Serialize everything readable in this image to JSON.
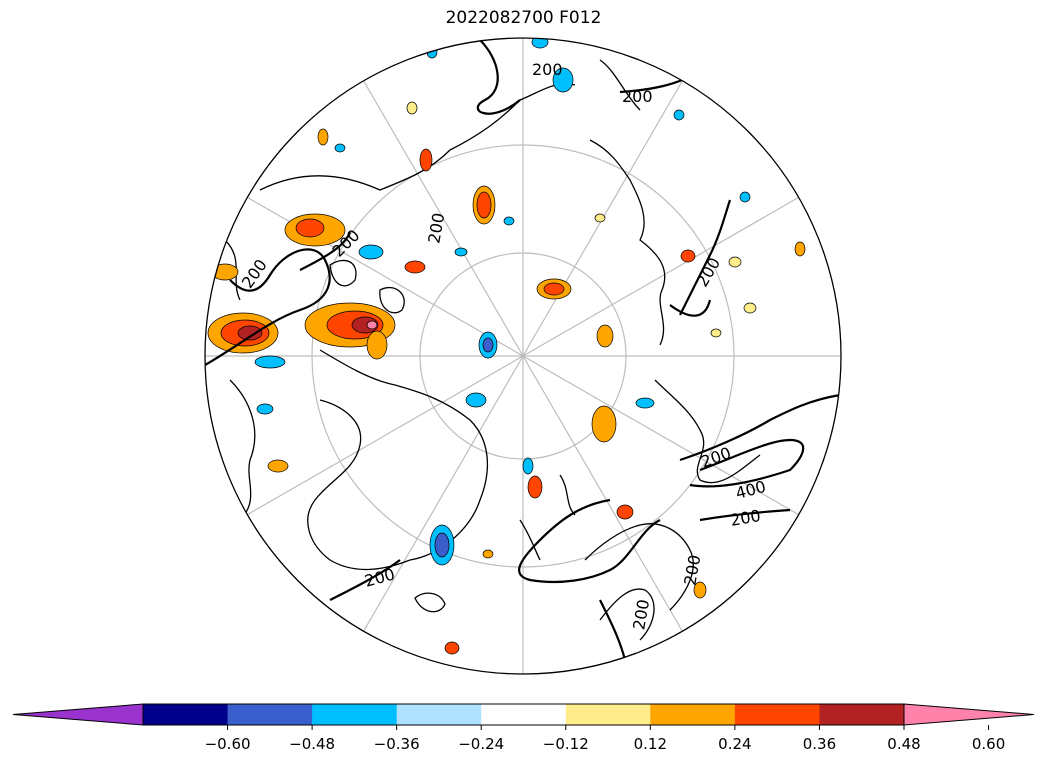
{
  "title": "2022082700 F012",
  "contour_labels": [
    "200",
    "200",
    "200",
    "200",
    "200",
    "200",
    "400",
    "200",
    "200",
    "200",
    "200",
    "200"
  ],
  "colorbar": {
    "colors": [
      "#9a32cd",
      "#00008b",
      "#3a5fcd",
      "#00bfff",
      "#b0e2ff",
      "#ffffff",
      "#ffec8b",
      "#ffa500",
      "#ff4500",
      "#b22222",
      "#ff82ab"
    ],
    "tick_labels": [
      "−0.60",
      "−0.48",
      "−0.36",
      "−0.24",
      "−0.12",
      "0.12",
      "0.24",
      "0.36",
      "0.48",
      "0.60"
    ],
    "levels": [
      -0.6,
      -0.48,
      -0.36,
      -0.24,
      -0.12,
      0.12,
      0.24,
      0.36,
      0.48,
      0.6
    ],
    "extend": "both"
  },
  "projection": "north-polar-stereographic",
  "gridlines": "on"
}
